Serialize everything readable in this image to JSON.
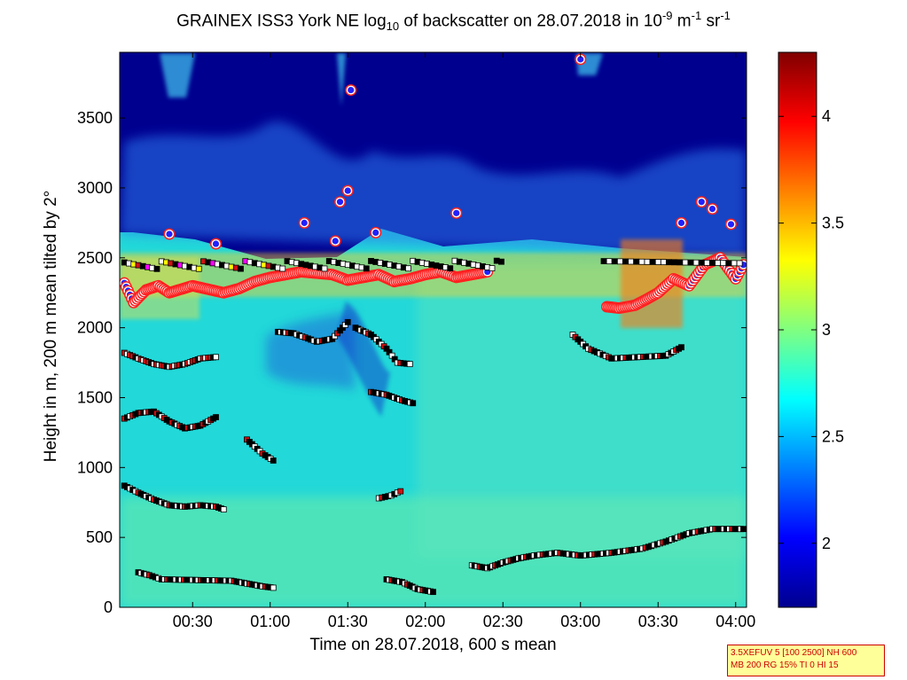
{
  "title": {
    "part1": "GRAINEX ISS3 York NE log",
    "sub1": "10",
    "part2": " of backscatter on 28.07.2018 in 10",
    "sup1": "-9",
    "part3": " m",
    "sup2": "-1",
    "part4": " sr",
    "sup3": "-1"
  },
  "settings_box": {
    "line1": "3.5XEFUV 5 [100 2500] NH 600",
    "line2": "MB 200 RG 15% TI 0 HI 15"
  },
  "colors": {
    "colormap": [
      "#00008f",
      "#0000ff",
      "#0080ff",
      "#00ffff",
      "#80ff80",
      "#ffff00",
      "#ff8000",
      "#ff0000",
      "#800000"
    ],
    "cloud_marker_fill": "#2020ff",
    "cloud_marker_edge": "#ffffff",
    "cloud_marker_ring": "#ff2020",
    "marker_black": "#000000",
    "marker_white": "#ffffff",
    "marker_red": "#d01010",
    "marker_yellow": "#ffff00",
    "marker_magenta": "#ff00ff"
  },
  "chart_data": {
    "type": "heatmap",
    "title": "GRAINEX ISS3 York NE log10 of backscatter on 28.07.2018 in 10^-9 m^-1 sr^-1",
    "xlabel": "Time on 28.07.2018, 600 s mean",
    "ylabel": "Height in m, 200 m mean tilted by 2°",
    "x_tick_labels": [
      "00:30",
      "01:00",
      "01:30",
      "02:00",
      "02:30",
      "03:00",
      "03:30",
      "04:00"
    ],
    "x_tick_hours": [
      0.5,
      1.0,
      1.5,
      2.0,
      2.5,
      3.0,
      3.5,
      4.0
    ],
    "xlim_hours": [
      0.03,
      4.07
    ],
    "y_ticks": [
      0,
      500,
      1000,
      1500,
      2000,
      2500,
      3000,
      3500
    ],
    "ylim": [
      0,
      3970
    ],
    "colorbar": {
      "ticks": [
        2,
        2.5,
        3,
        3.5,
        4
      ],
      "tick_labels": [
        "2",
        "2.5",
        "3",
        "3.5",
        "4"
      ],
      "range": [
        1.7,
        4.3
      ]
    },
    "layers": {
      "cloud_base": [
        [
          0.06,
          2320
        ],
        [
          0.12,
          2180
        ],
        [
          0.2,
          2270
        ],
        [
          0.28,
          2300
        ],
        [
          0.35,
          2250
        ],
        [
          0.5,
          2300
        ],
        [
          0.7,
          2250
        ],
        [
          0.8,
          2280
        ],
        [
          0.9,
          2330
        ],
        [
          1.0,
          2360
        ],
        [
          1.1,
          2380
        ],
        [
          1.2,
          2400
        ],
        [
          1.3,
          2390
        ],
        [
          1.4,
          2380
        ],
        [
          1.5,
          2340
        ],
        [
          1.6,
          2360
        ],
        [
          1.7,
          2380
        ],
        [
          1.8,
          2330
        ],
        [
          1.9,
          2350
        ],
        [
          2.0,
          2380
        ],
        [
          2.1,
          2400
        ],
        [
          2.2,
          2360
        ],
        [
          2.4,
          2400
        ],
        [
          3.17,
          2150
        ],
        [
          3.25,
          2140
        ],
        [
          3.35,
          2160
        ],
        [
          3.42,
          2200
        ],
        [
          3.5,
          2250
        ],
        [
          3.6,
          2350
        ],
        [
          3.7,
          2300
        ],
        [
          3.8,
          2450
        ],
        [
          3.9,
          2500
        ],
        [
          4.0,
          2350
        ],
        [
          4.05,
          2450
        ]
      ],
      "cloud_elevated": [
        [
          1.52,
          3700
        ],
        [
          3.0,
          3920
        ],
        [
          1.22,
          2750
        ],
        [
          1.5,
          2980
        ],
        [
          1.45,
          2900
        ],
        [
          1.68,
          2680
        ],
        [
          2.2,
          2820
        ],
        [
          3.78,
          2900
        ],
        [
          3.85,
          2850
        ],
        [
          0.35,
          2670
        ],
        [
          3.97,
          2740
        ],
        [
          3.65,
          2750
        ],
        [
          1.42,
          2620
        ],
        [
          0.65,
          2600
        ]
      ],
      "layer_1": [
        [
          0.06,
          870
        ],
        [
          0.15,
          820
        ],
        [
          0.25,
          770
        ],
        [
          0.35,
          730
        ],
        [
          0.45,
          720
        ],
        [
          0.55,
          730
        ],
        [
          0.65,
          720
        ],
        [
          0.7,
          700
        ]
      ],
      "layer_2": [
        [
          0.15,
          250
        ],
        [
          0.22,
          230
        ],
        [
          0.3,
          200
        ],
        [
          0.75,
          190
        ],
        [
          0.85,
          170
        ],
        [
          0.95,
          150
        ],
        [
          1.02,
          140
        ]
      ],
      "layer_3": [
        [
          2.3,
          300
        ],
        [
          2.4,
          280
        ],
        [
          2.5,
          320
        ],
        [
          2.6,
          350
        ],
        [
          2.7,
          370
        ],
        [
          2.85,
          390
        ],
        [
          3.0,
          370
        ],
        [
          3.2,
          390
        ],
        [
          3.4,
          420
        ],
        [
          3.55,
          470
        ],
        [
          3.7,
          530
        ],
        [
          3.85,
          560
        ],
        [
          4.05,
          560
        ]
      ],
      "layer_4": [
        [
          1.75,
          200
        ],
        [
          1.85,
          180
        ],
        [
          1.95,
          130
        ],
        [
          2.05,
          110
        ]
      ],
      "layer_5": [
        [
          1.7,
          780
        ],
        [
          1.78,
          800
        ],
        [
          1.84,
          830
        ]
      ],
      "layer_6": [
        [
          1.65,
          1540
        ],
        [
          1.75,
          1520
        ],
        [
          1.85,
          1480
        ],
        [
          1.92,
          1460
        ]
      ],
      "layer_7": [
        [
          1.55,
          2000
        ],
        [
          1.65,
          1950
        ],
        [
          1.75,
          1850
        ],
        [
          1.82,
          1750
        ],
        [
          1.9,
          1740
        ]
      ],
      "layer_8": [
        [
          1.05,
          1970
        ],
        [
          1.15,
          1960
        ],
        [
          1.3,
          1900
        ],
        [
          1.4,
          1920
        ],
        [
          1.5,
          2040
        ]
      ],
      "layer_9": [
        [
          0.06,
          1350
        ],
        [
          0.15,
          1390
        ],
        [
          0.25,
          1400
        ],
        [
          0.35,
          1330
        ],
        [
          0.45,
          1280
        ],
        [
          0.55,
          1300
        ],
        [
          0.65,
          1360
        ]
      ],
      "layer_10": [
        [
          0.06,
          1820
        ],
        [
          0.15,
          1780
        ],
        [
          0.25,
          1740
        ],
        [
          0.35,
          1720
        ],
        [
          0.45,
          1740
        ],
        [
          0.55,
          1780
        ],
        [
          0.65,
          1790
        ]
      ],
      "layer_11": [
        [
          2.95,
          1950
        ],
        [
          3.05,
          1850
        ],
        [
          3.2,
          1780
        ],
        [
          3.55,
          1800
        ],
        [
          3.65,
          1860
        ]
      ],
      "layer_12": [
        [
          0.85,
          1200
        ],
        [
          0.95,
          1100
        ],
        [
          1.02,
          1050
        ]
      ]
    }
  }
}
